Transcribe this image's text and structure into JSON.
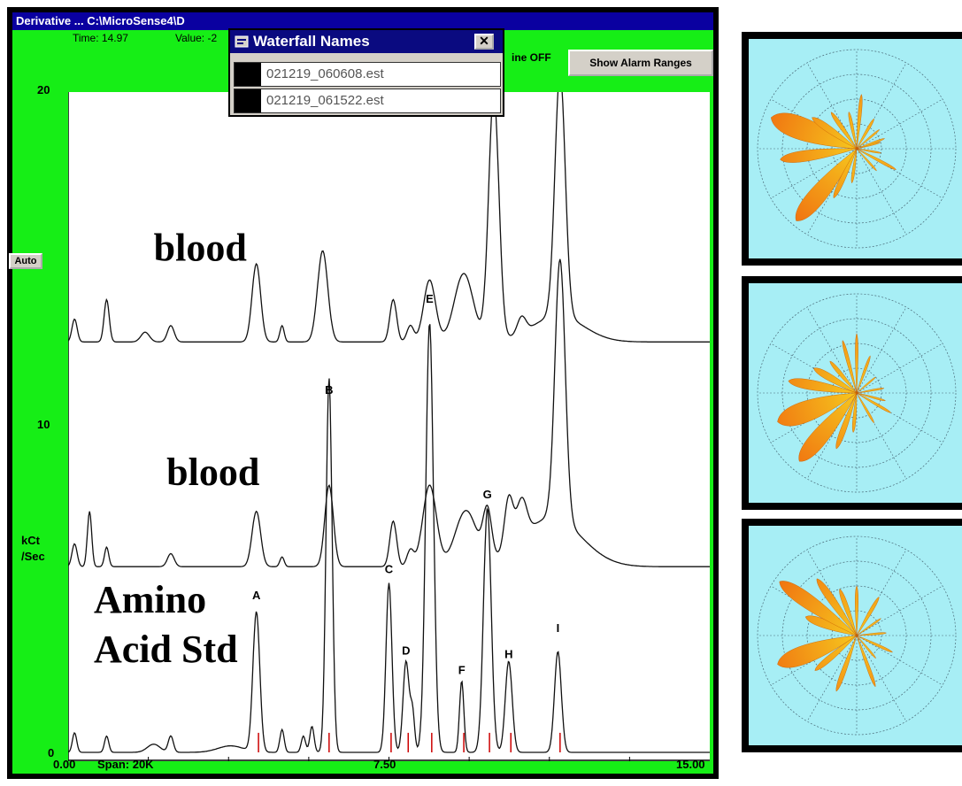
{
  "window": {
    "title": "Derivative ... C:\\MicroSense4\\D",
    "time_readout": "Time: 14.97",
    "value_readout": "Value: -2",
    "baseline_readout": "ine OFF",
    "alarm_button": "Show Alarm Ranges",
    "auto_button": "Auto"
  },
  "waterfall_dialog": {
    "title": "Waterfall Names",
    "close_label": "✕",
    "items": [
      "021219_060608.est",
      "021219_061522.est"
    ]
  },
  "colors": {
    "frame_green": "#16ee16",
    "title_bar_blue": "#0a00a0",
    "polar_background": "#a7eef5",
    "petal_orange": "#f07010",
    "petal_yellow": "#f6c81e"
  },
  "chart_data": {
    "type": "line",
    "xlabel": "",
    "ylabel": "kCt\n/Sec",
    "xlim": [
      0,
      15
    ],
    "ylim": [
      0,
      20
    ],
    "x_ticks": [
      "0.00",
      "7.50",
      "15.00"
    ],
    "y_ticks": [
      "20",
      "10",
      "0"
    ],
    "span_label": "Span: 20K",
    "grid": false,
    "trace_labels": [
      "blood",
      "blood",
      "Amino\nAcid Std"
    ],
    "series": [
      {
        "baseline": 12.6,
        "peaks": [
          [
            0.15,
            0.7,
            0.06
          ],
          [
            0.9,
            1.3,
            0.06
          ],
          [
            1.8,
            0.3,
            0.1
          ],
          [
            2.4,
            0.5,
            0.08
          ],
          [
            4.4,
            2.4,
            0.1
          ],
          [
            5.0,
            0.5,
            0.05
          ],
          [
            5.95,
            2.8,
            0.12
          ],
          [
            7.6,
            1.3,
            0.08
          ],
          [
            8.0,
            0.5,
            0.08
          ],
          [
            8.45,
            1.9,
            0.14
          ],
          [
            9.25,
            2.1,
            0.22
          ],
          [
            9.95,
            7.6,
            0.12
          ],
          [
            10.6,
            0.5,
            0.1
          ],
          [
            11.5,
            7.5,
            0.12
          ],
          [
            11.45,
            0.8,
            0.6
          ]
        ]
      },
      {
        "baseline": 5.7,
        "peaks": [
          [
            0.15,
            0.7,
            0.06
          ],
          [
            0.5,
            1.7,
            0.05
          ],
          [
            0.9,
            0.6,
            0.05
          ],
          [
            2.4,
            0.4,
            0.08
          ],
          [
            4.4,
            1.7,
            0.1
          ],
          [
            5.0,
            0.3,
            0.05
          ],
          [
            6.1,
            2.5,
            0.1
          ],
          [
            7.6,
            1.4,
            0.08
          ],
          [
            8.0,
            0.5,
            0.08
          ],
          [
            8.45,
            2.5,
            0.16
          ],
          [
            9.3,
            1.7,
            0.25
          ],
          [
            9.8,
            1.5,
            0.1
          ],
          [
            10.3,
            1.6,
            0.1
          ],
          [
            10.6,
            1.2,
            0.12
          ],
          [
            11.5,
            8.0,
            0.12
          ],
          [
            11.3,
            1.5,
            0.7
          ]
        ]
      },
      {
        "baseline": 0,
        "peaks": [
          [
            0.15,
            0.6,
            0.05
          ],
          [
            0.9,
            0.5,
            0.05
          ],
          [
            2.0,
            0.25,
            0.15
          ],
          [
            2.4,
            0.5,
            0.06
          ],
          [
            3.8,
            0.2,
            0.3
          ],
          [
            4.4,
            4.3,
            0.08
          ],
          [
            5.0,
            0.7,
            0.05
          ],
          [
            5.5,
            0.5,
            0.05
          ],
          [
            5.7,
            0.8,
            0.05
          ],
          [
            6.1,
            11.5,
            0.07
          ],
          [
            7.5,
            5.2,
            0.07
          ],
          [
            7.9,
            2.8,
            0.07
          ],
          [
            8.05,
            1.2,
            0.05
          ],
          [
            8.45,
            13.2,
            0.09
          ],
          [
            9.2,
            2.2,
            0.05
          ],
          [
            9.8,
            7.5,
            0.09
          ],
          [
            10.3,
            2.8,
            0.08
          ],
          [
            11.45,
            3.1,
            0.08
          ]
        ]
      }
    ],
    "peak_labels": [
      {
        "label": "A",
        "x": 4.4,
        "y": 4.7
      },
      {
        "label": "B",
        "x": 6.1,
        "y": 11.0
      },
      {
        "label": "C",
        "x": 7.5,
        "y": 5.5
      },
      {
        "label": "D",
        "x": 7.9,
        "y": 3.0
      },
      {
        "label": "E",
        "x": 8.45,
        "y": 13.8
      },
      {
        "label": "F",
        "x": 9.2,
        "y": 2.4
      },
      {
        "label": "G",
        "x": 9.8,
        "y": 7.8
      },
      {
        "label": "H",
        "x": 10.3,
        "y": 2.9
      },
      {
        "label": "I",
        "x": 11.45,
        "y": 3.7
      }
    ],
    "marker_color": "#cc0000",
    "markers_x": [
      4.45,
      6.1,
      7.55,
      7.95,
      8.5,
      9.25,
      9.85,
      10.35,
      11.5
    ]
  },
  "polar_plots": [
    {
      "rings": 4,
      "spokes": 12,
      "petals": [
        [
          200,
          0.92,
          16
        ],
        [
          172,
          0.78,
          9
        ],
        [
          215,
          0.55,
          8
        ],
        [
          235,
          0.45,
          6
        ],
        [
          258,
          0.38,
          5
        ],
        [
          275,
          0.55,
          4
        ],
        [
          130,
          0.95,
          12
        ],
        [
          115,
          0.55,
          6
        ],
        [
          98,
          0.35,
          5
        ],
        [
          300,
          0.35,
          5
        ],
        [
          320,
          0.3,
          4
        ],
        [
          48,
          0.3,
          4
        ],
        [
          28,
          0.45,
          4
        ],
        [
          10,
          0.25,
          4
        ],
        [
          345,
          0.25,
          4
        ],
        [
          340,
          0.3,
          4
        ]
      ]
    },
    {
      "rings": 4,
      "spokes": 12,
      "petals": [
        [
          160,
          0.85,
          16
        ],
        [
          190,
          0.7,
          9
        ],
        [
          130,
          0.9,
          12
        ],
        [
          210,
          0.5,
          9
        ],
        [
          230,
          0.42,
          6
        ],
        [
          255,
          0.55,
          4
        ],
        [
          270,
          0.6,
          3
        ],
        [
          290,
          0.4,
          4
        ],
        [
          320,
          0.25,
          4
        ],
        [
          110,
          0.6,
          6
        ],
        [
          95,
          0.4,
          5
        ],
        [
          60,
          0.35,
          4
        ],
        [
          30,
          0.4,
          4
        ],
        [
          15,
          0.3,
          4
        ],
        [
          350,
          0.28,
          4
        ]
      ]
    },
    {
      "rings": 4,
      "spokes": 12,
      "petals": [
        [
          160,
          0.85,
          14
        ],
        [
          200,
          0.55,
          10
        ],
        [
          215,
          0.95,
          10
        ],
        [
          235,
          0.7,
          7
        ],
        [
          250,
          0.5,
          6
        ],
        [
          270,
          0.5,
          4
        ],
        [
          300,
          0.45,
          5
        ],
        [
          325,
          0.3,
          4
        ],
        [
          140,
          0.55,
          7
        ],
        [
          110,
          0.6,
          5
        ],
        [
          70,
          0.55,
          4
        ],
        [
          50,
          0.3,
          4
        ],
        [
          25,
          0.4,
          4
        ],
        [
          355,
          0.3,
          4
        ]
      ]
    }
  ]
}
